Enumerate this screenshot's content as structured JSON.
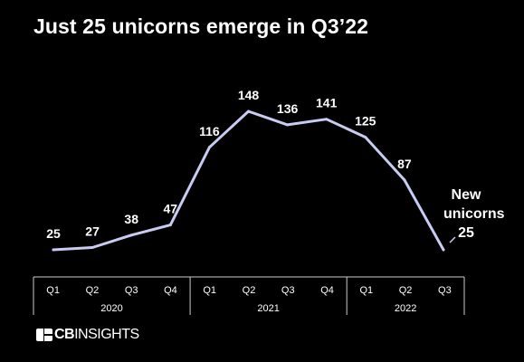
{
  "title": "Just 25 unicorns emerge in Q3’22",
  "annotation": [
    "New",
    "unicorns",
    "25"
  ],
  "brand": {
    "bold": "CB",
    "regular": "INSIGHTS"
  },
  "colors": {
    "background": "#000000",
    "line": "#c8cbf2",
    "text": "#ffffff",
    "axis": "#cccccc"
  },
  "chart_data": {
    "type": "line",
    "title": "Just 25 unicorns emerge in Q3’22",
    "xlabel": "",
    "ylabel": "",
    "categories": [
      "Q1",
      "Q2",
      "Q3",
      "Q4",
      "Q1",
      "Q2",
      "Q3",
      "Q4",
      "Q1",
      "Q2",
      "Q3"
    ],
    "year_groups": [
      {
        "label": "2020",
        "count": 4
      },
      {
        "label": "2021",
        "count": 4
      },
      {
        "label": "2022",
        "count": 3
      }
    ],
    "series": [
      {
        "name": "New unicorns",
        "values": [
          25,
          27,
          38,
          47,
          116,
          148,
          136,
          141,
          125,
          87,
          25
        ]
      }
    ],
    "ylim": [
      0,
      160
    ],
    "grid": false,
    "legend": "none"
  }
}
